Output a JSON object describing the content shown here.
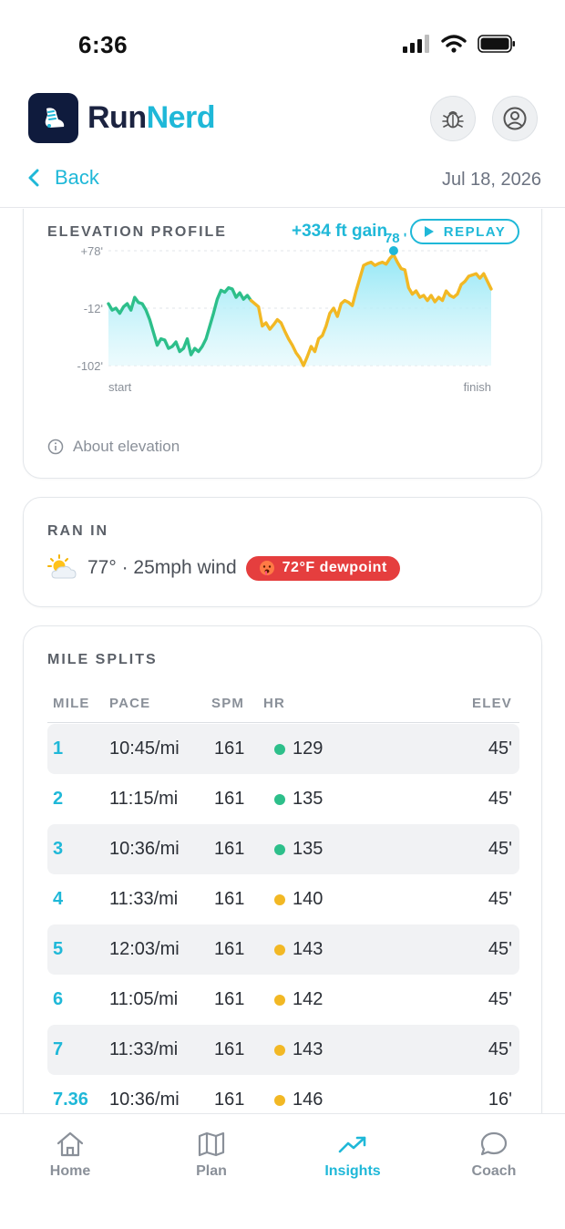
{
  "status": {
    "time": "6:36"
  },
  "app": {
    "brand_run": "Run",
    "brand_nerd": "Nerd"
  },
  "nav": {
    "back_label": "Back",
    "date": "Jul 18, 2026"
  },
  "elevation": {
    "title": "ELEVATION PROFILE",
    "gain": "+334 ft gain",
    "replay_label": "REPLAY",
    "peak_label": "78 ʹ",
    "y_ticks": [
      "+78ʹ",
      "-12ʹ",
      "-102ʹ"
    ],
    "x_start": "start",
    "x_end": "finish",
    "about_label": "About elevation",
    "colors": {
      "good": "#2dbf8a",
      "warn": "#f2b824",
      "fill": "#a6ecf7"
    }
  },
  "chart_data": {
    "type": "area",
    "y_unit": "ft",
    "ylim": [
      -102,
      78
    ],
    "x_labels": [
      "start",
      "finish"
    ],
    "elevation": [
      -5,
      -15,
      -12,
      -20,
      -10,
      -5,
      -15,
      5,
      -3,
      -5,
      -15,
      -30,
      -50,
      -70,
      -60,
      -62,
      -75,
      -72,
      -65,
      -80,
      -75,
      -60,
      -85,
      -75,
      -80,
      -72,
      -60,
      -40,
      -20,
      2,
      16,
      13,
      20,
      18,
      5,
      12,
      2,
      8,
      0,
      -5,
      -10,
      -40,
      -35,
      -45,
      -38,
      -30,
      -35,
      -48,
      -60,
      -70,
      -82,
      -90,
      -102,
      -88,
      -72,
      -80,
      -60,
      -55,
      -40,
      -20,
      -12,
      -25,
      -5,
      0,
      -3,
      -8,
      15,
      35,
      55,
      58,
      60,
      55,
      58,
      60,
      57,
      66,
      72,
      60,
      50,
      48,
      20,
      10,
      15,
      5,
      8,
      0,
      8,
      -2,
      5,
      0,
      15,
      8,
      5,
      10,
      25,
      30,
      38,
      40,
      42,
      35,
      42,
      30,
      18
    ],
    "colors_by_segment": [
      "good (start to ~37%)",
      "warn (~37% to finish)"
    ]
  },
  "weather": {
    "title": "RAN IN",
    "icon": "sun-behind-cloud",
    "text": "77° · 25mph wind",
    "dew_label": "72°F dewpoint"
  },
  "splits": {
    "title": "MILE SPLITS",
    "headers": {
      "mile": "MILE",
      "pace": "PACE",
      "spm": "SPM",
      "hr": "HR",
      "elev": "ELEV"
    },
    "rows": [
      {
        "mile": "1",
        "pace": "10:45/mi",
        "spm": "161",
        "hr": "129",
        "zone": "good",
        "elev": "45ʹ"
      },
      {
        "mile": "2",
        "pace": "11:15/mi",
        "spm": "161",
        "hr": "135",
        "zone": "good",
        "elev": "45ʹ"
      },
      {
        "mile": "3",
        "pace": "10:36/mi",
        "spm": "161",
        "hr": "135",
        "zone": "good",
        "elev": "45ʹ"
      },
      {
        "mile": "4",
        "pace": "11:33/mi",
        "spm": "161",
        "hr": "140",
        "zone": "warn",
        "elev": "45ʹ"
      },
      {
        "mile": "5",
        "pace": "12:03/mi",
        "spm": "161",
        "hr": "143",
        "zone": "warn",
        "elev": "45ʹ"
      },
      {
        "mile": "6",
        "pace": "11:05/mi",
        "spm": "161",
        "hr": "142",
        "zone": "warn",
        "elev": "45ʹ"
      },
      {
        "mile": "7",
        "pace": "11:33/mi",
        "spm": "161",
        "hr": "143",
        "zone": "warn",
        "elev": "45ʹ"
      },
      {
        "mile": "7.36",
        "pace": "10:36/mi",
        "spm": "161",
        "hr": "146",
        "zone": "warn",
        "elev": "16ʹ"
      }
    ]
  },
  "tabs": [
    {
      "label": "Home",
      "icon": "home-icon",
      "active": false
    },
    {
      "label": "Plan",
      "icon": "map-icon",
      "active": false
    },
    {
      "label": "Insights",
      "icon": "trending-up-icon",
      "active": true
    },
    {
      "label": "Coach",
      "icon": "chat-bubble-icon",
      "active": false
    }
  ],
  "theme": {
    "accent": "#1fb8d8",
    "navy": "#0f1b3d",
    "good": "#2dbf8a",
    "warn": "#f2b824",
    "alert": "#e53e3e"
  }
}
